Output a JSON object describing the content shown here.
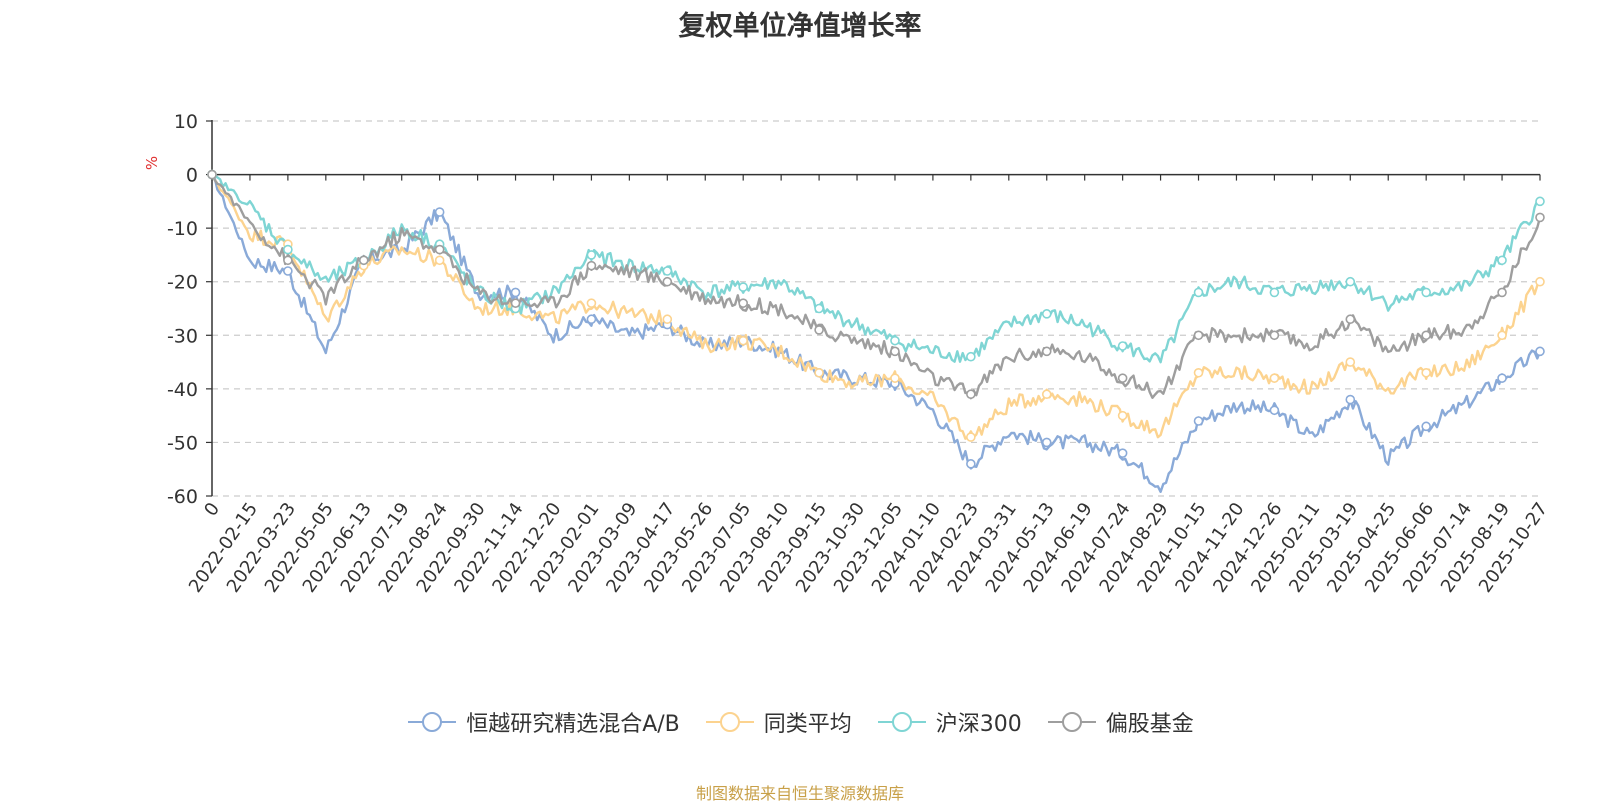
{
  "chart_data": {
    "type": "line",
    "title": "复权单位净值增长率",
    "ylabel": "%",
    "ylim": [
      -60,
      10
    ],
    "yticks": [
      "10",
      "0",
      "-10",
      "-20",
      "-30",
      "-40",
      "-50",
      "-60"
    ],
    "categories": [
      "0",
      "2022-02-15",
      "2022-03-23",
      "2022-05-05",
      "2022-06-13",
      "2022-07-19",
      "2022-08-24",
      "2022-09-30",
      "2022-11-14",
      "2022-12-20",
      "2023-02-01",
      "2023-03-09",
      "2023-04-17",
      "2023-05-26",
      "2023-07-05",
      "2023-08-10",
      "2023-09-15",
      "2023-10-30",
      "2023-12-05",
      "2024-01-10",
      "2024-02-23",
      "2024-03-31",
      "2024-05-13",
      "2024-06-19",
      "2024-07-24",
      "2024-08-29",
      "2024-10-15",
      "2024-11-20",
      "2024-12-26",
      "2025-02-11",
      "2025-03-19",
      "2025-04-25",
      "2025-06-06",
      "2025-07-14",
      "2025-08-19",
      "2025-10-27"
    ],
    "series": [
      {
        "name": "恒越研究精选混合A/B",
        "color": "#8aaad8",
        "values": [
          0,
          -16,
          -18,
          -33,
          -16,
          -14,
          -7,
          -22,
          -22,
          -30,
          -27,
          -30,
          -28,
          -32,
          -31,
          -33,
          -37,
          -38,
          -39,
          -44,
          -54,
          -48,
          -50,
          -50,
          -52,
          -58,
          -46,
          -43,
          -44,
          -49,
          -42,
          -53,
          -47,
          -43,
          -38,
          -33
        ]
      },
      {
        "name": "同类平均",
        "color": "#fcd38f",
        "values": [
          0,
          -11,
          -13,
          -27,
          -17,
          -14,
          -16,
          -25,
          -25,
          -27,
          -24,
          -26,
          -27,
          -32,
          -31,
          -33,
          -37,
          -39,
          -38,
          -42,
          -49,
          -43,
          -41,
          -42,
          -45,
          -48,
          -37,
          -37,
          -38,
          -40,
          -35,
          -40,
          -37,
          -36,
          -30,
          -20
        ]
      },
      {
        "name": "沪深300",
        "color": "#7fd5d4",
        "values": [
          0,
          -6,
          -14,
          -20,
          -16,
          -10,
          -13,
          -22,
          -25,
          -22,
          -15,
          -17,
          -18,
          -22,
          -21,
          -20,
          -25,
          -28,
          -31,
          -33,
          -34,
          -28,
          -26,
          -28,
          -32,
          -35,
          -22,
          -20,
          -22,
          -21,
          -20,
          -24,
          -22,
          -21,
          -16,
          -5
        ]
      },
      {
        "name": "偏股基金",
        "color": "#9e9e9e",
        "values": [
          0,
          -9,
          -16,
          -23,
          -16,
          -11,
          -14,
          -22,
          -24,
          -24,
          -17,
          -18,
          -20,
          -23,
          -24,
          -25,
          -29,
          -31,
          -33,
          -38,
          -41,
          -34,
          -33,
          -34,
          -38,
          -41,
          -30,
          -30,
          -30,
          -32,
          -27,
          -33,
          -30,
          -29,
          -22,
          -8
        ]
      }
    ]
  },
  "legend_items": [
    {
      "label": "恒越研究精选混合A/B"
    },
    {
      "label": "同类平均"
    },
    {
      "label": "沪深300"
    },
    {
      "label": "偏股基金"
    }
  ],
  "footer": {
    "source": "制图数据来自恒生聚源数据库"
  }
}
